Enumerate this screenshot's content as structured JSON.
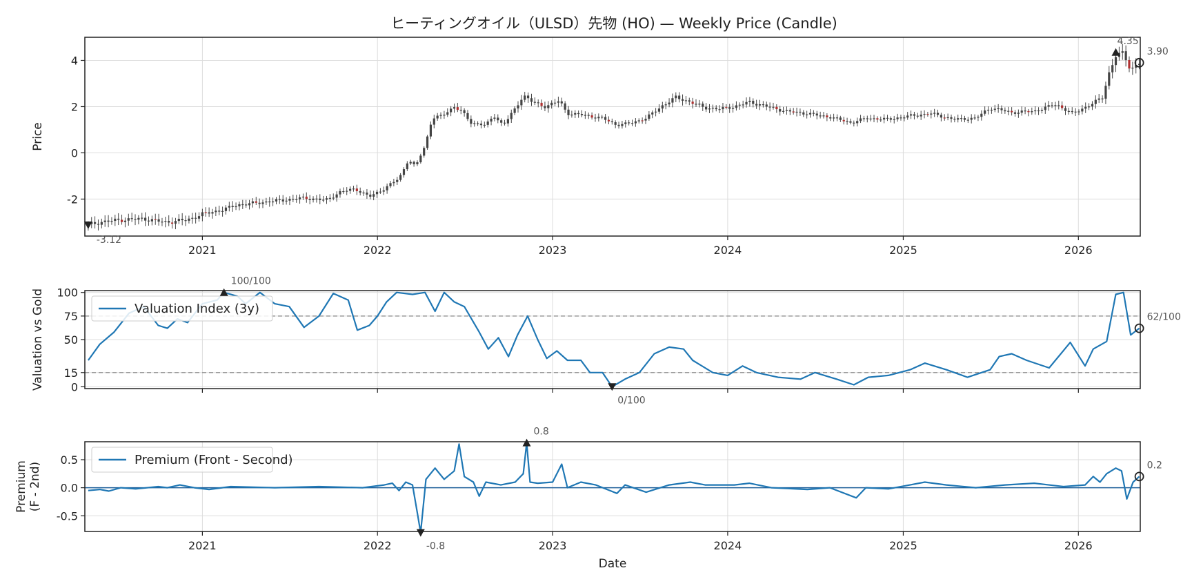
{
  "chart_data": [
    {
      "id": "price",
      "type": "candlestick",
      "title": "ヒーティングオイル（ULSD）先物 (HO) — Weekly Price (Candle)",
      "xlabel": "",
      "ylabel": "Price",
      "xlim": [
        "2020-05-01",
        "2026-05-10"
      ],
      "ylim": [
        -3.6,
        5.0
      ],
      "yticks": [
        -2,
        0,
        2,
        4
      ],
      "xticks": [
        "2021",
        "2022",
        "2023",
        "2024",
        "2025",
        "2026"
      ],
      "grid": true,
      "colors": {
        "up": "#444444",
        "down": "#b03030"
      },
      "anchors": [
        [
          "2020-05-08",
          -3.12
        ],
        [
          "2020-06-01",
          -3.0
        ],
        [
          "2020-07-15",
          -2.9
        ],
        [
          "2020-09-01",
          -2.85
        ],
        [
          "2020-10-15",
          -3.0
        ],
        [
          "2020-12-01",
          -2.9
        ],
        [
          "2021-01-01",
          -2.65
        ],
        [
          "2021-02-15",
          -2.45
        ],
        [
          "2021-03-15",
          -2.25
        ],
        [
          "2021-05-01",
          -2.15
        ],
        [
          "2021-06-15",
          -2.05
        ],
        [
          "2021-08-01",
          -1.95
        ],
        [
          "2021-09-15",
          -2.05
        ],
        [
          "2021-10-15",
          -1.7
        ],
        [
          "2021-11-15",
          -1.55
        ],
        [
          "2021-12-15",
          -1.9
        ],
        [
          "2022-01-15",
          -1.55
        ],
        [
          "2022-02-15",
          -1.1
        ],
        [
          "2022-03-07",
          -0.3
        ],
        [
          "2022-03-21",
          -0.6
        ],
        [
          "2022-04-10",
          0.3
        ],
        [
          "2022-04-25",
          1.5
        ],
        [
          "2022-05-15",
          1.6
        ],
        [
          "2022-06-10",
          2.0
        ],
        [
          "2022-06-25",
          1.8
        ],
        [
          "2022-07-15",
          1.3
        ],
        [
          "2022-08-15",
          1.2
        ],
        [
          "2022-09-01",
          1.6
        ],
        [
          "2022-09-20",
          1.2
        ],
        [
          "2022-10-15",
          1.9
        ],
        [
          "2022-11-01",
          2.5
        ],
        [
          "2022-11-20",
          2.2
        ],
        [
          "2022-12-15",
          2.0
        ],
        [
          "2023-01-15",
          2.25
        ],
        [
          "2023-02-01",
          1.7
        ],
        [
          "2023-03-01",
          1.65
        ],
        [
          "2023-04-15",
          1.5
        ],
        [
          "2023-05-15",
          1.2
        ],
        [
          "2023-06-15",
          1.3
        ],
        [
          "2023-07-15",
          1.5
        ],
        [
          "2023-08-15",
          2.0
        ],
        [
          "2023-09-15",
          2.4
        ],
        [
          "2023-10-15",
          2.2
        ],
        [
          "2023-11-15",
          1.95
        ],
        [
          "2023-12-15",
          1.9
        ],
        [
          "2024-01-15",
          2.0
        ],
        [
          "2024-02-15",
          2.2
        ],
        [
          "2024-03-15",
          2.05
        ],
        [
          "2024-05-01",
          1.8
        ],
        [
          "2024-06-15",
          1.7
        ],
        [
          "2024-08-01",
          1.55
        ],
        [
          "2024-09-15",
          1.3
        ],
        [
          "2024-10-15",
          1.5
        ],
        [
          "2024-12-01",
          1.45
        ],
        [
          "2025-01-15",
          1.6
        ],
        [
          "2025-03-01",
          1.7
        ],
        [
          "2025-04-15",
          1.45
        ],
        [
          "2025-06-01",
          1.5
        ],
        [
          "2025-07-01",
          1.95
        ],
        [
          "2025-08-15",
          1.75
        ],
        [
          "2025-10-01",
          1.8
        ],
        [
          "2025-11-15",
          2.1
        ],
        [
          "2025-12-20",
          1.7
        ],
        [
          "2026-02-01",
          2.15
        ],
        [
          "2026-02-20",
          2.4
        ],
        [
          "2026-03-05",
          3.4
        ],
        [
          "2026-03-20",
          4.2
        ],
        [
          "2026-04-05",
          4.3
        ],
        [
          "2026-04-20",
          3.6
        ],
        [
          "2026-05-08",
          3.9
        ]
      ],
      "annotations": [
        {
          "label": "4.35",
          "x": "2026-03-20",
          "y": 4.35,
          "marker": "up"
        },
        {
          "label": "3.90",
          "x": "2026-05-08",
          "y": 3.9,
          "marker": "circle"
        },
        {
          "label": "-3.12",
          "x": "2020-05-08",
          "y": -3.12,
          "marker": "down"
        }
      ]
    },
    {
      "id": "valuation",
      "type": "line",
      "xlabel": "",
      "ylabel": "Valuation vs Gold",
      "xlim": [
        "2020-05-01",
        "2026-05-10"
      ],
      "ylim": [
        -2,
        102
      ],
      "yticks": [
        0,
        15,
        50,
        75,
        100
      ],
      "hlines": [
        15,
        75
      ],
      "grid": true,
      "legend": "upper-left",
      "series": [
        {
          "name": "Valuation Index (3y)",
          "color": "#1f77b4",
          "points": [
            [
              "2020-05-08",
              28
            ],
            [
              "2020-06-01",
              45
            ],
            [
              "2020-07-01",
              58
            ],
            [
              "2020-08-01",
              78
            ],
            [
              "2020-09-01",
              85
            ],
            [
              "2020-10-01",
              65
            ],
            [
              "2020-10-20",
              62
            ],
            [
              "2020-11-10",
              72
            ],
            [
              "2020-12-01",
              68
            ],
            [
              "2021-01-01",
              88
            ],
            [
              "2021-02-01",
              92
            ],
            [
              "2021-02-15",
              100
            ],
            [
              "2021-03-15",
              96
            ],
            [
              "2021-04-01",
              88
            ],
            [
              "2021-05-01",
              100
            ],
            [
              "2021-06-01",
              88
            ],
            [
              "2021-07-01",
              85
            ],
            [
              "2021-08-01",
              63
            ],
            [
              "2021-09-01",
              75
            ],
            [
              "2021-10-01",
              99
            ],
            [
              "2021-11-01",
              92
            ],
            [
              "2021-11-20",
              60
            ],
            [
              "2021-12-15",
              65
            ],
            [
              "2022-01-01",
              75
            ],
            [
              "2022-01-20",
              90
            ],
            [
              "2022-02-10",
              100
            ],
            [
              "2022-03-15",
              98
            ],
            [
              "2022-04-10",
              100
            ],
            [
              "2022-05-01",
              80
            ],
            [
              "2022-05-20",
              100
            ],
            [
              "2022-06-10",
              90
            ],
            [
              "2022-07-01",
              85
            ],
            [
              "2022-08-01",
              58
            ],
            [
              "2022-08-20",
              40
            ],
            [
              "2022-09-10",
              52
            ],
            [
              "2022-10-01",
              32
            ],
            [
              "2022-10-20",
              55
            ],
            [
              "2022-11-10",
              75
            ],
            [
              "2022-12-01",
              50
            ],
            [
              "2022-12-20",
              30
            ],
            [
              "2023-01-10",
              38
            ],
            [
              "2023-02-01",
              28
            ],
            [
              "2023-03-01",
              28
            ],
            [
              "2023-03-20",
              15
            ],
            [
              "2023-04-15",
              15
            ],
            [
              "2023-05-05",
              0
            ],
            [
              "2023-06-01",
              8
            ],
            [
              "2023-07-01",
              15
            ],
            [
              "2023-08-01",
              35
            ],
            [
              "2023-09-01",
              42
            ],
            [
              "2023-10-01",
              40
            ],
            [
              "2023-10-20",
              28
            ],
            [
              "2023-12-01",
              15
            ],
            [
              "2024-01-01",
              12
            ],
            [
              "2024-02-01",
              22
            ],
            [
              "2024-03-01",
              15
            ],
            [
              "2024-04-15",
              10
            ],
            [
              "2024-06-01",
              8
            ],
            [
              "2024-07-01",
              15
            ],
            [
              "2024-08-15",
              8
            ],
            [
              "2024-09-20",
              2
            ],
            [
              "2024-10-20",
              10
            ],
            [
              "2024-12-01",
              12
            ],
            [
              "2025-01-15",
              18
            ],
            [
              "2025-02-15",
              25
            ],
            [
              "2025-04-01",
              18
            ],
            [
              "2025-05-15",
              10
            ],
            [
              "2025-07-01",
              18
            ],
            [
              "2025-07-20",
              32
            ],
            [
              "2025-08-15",
              35
            ],
            [
              "2025-09-15",
              28
            ],
            [
              "2025-11-01",
              20
            ],
            [
              "2025-12-15",
              47
            ],
            [
              "2026-01-15",
              22
            ],
            [
              "2026-02-01",
              40
            ],
            [
              "2026-03-01",
              48
            ],
            [
              "2026-03-20",
              98
            ],
            [
              "2026-04-05",
              100
            ],
            [
              "2026-04-20",
              55
            ],
            [
              "2026-05-08",
              62
            ]
          ]
        }
      ],
      "annotations": [
        {
          "label": "100/100",
          "x": "2021-02-15",
          "y": 100,
          "marker": "up"
        },
        {
          "label": "0/100",
          "x": "2023-05-05",
          "y": 0,
          "marker": "down"
        },
        {
          "label": "62/100",
          "x": "2026-05-08",
          "y": 62,
          "marker": "circle"
        }
      ]
    },
    {
      "id": "premium",
      "type": "line",
      "xlabel": "Date",
      "ylabel": "Premium\n(F - 2nd)",
      "xlim": [
        "2020-05-01",
        "2026-05-10"
      ],
      "ylim": [
        -0.78,
        0.82
      ],
      "yticks": [
        -0.5,
        0.0,
        0.5
      ],
      "xticks": [
        "2021",
        "2022",
        "2023",
        "2024",
        "2025",
        "2026"
      ],
      "hlines": [
        0
      ],
      "grid": true,
      "legend": "upper-left",
      "series": [
        {
          "name": "Premium (Front - Second)",
          "color": "#1f77b4",
          "points": [
            [
              "2020-05-08",
              -0.05
            ],
            [
              "2020-06-01",
              -0.03
            ],
            [
              "2020-06-20",
              -0.06
            ],
            [
              "2020-07-15",
              0.0
            ],
            [
              "2020-08-15",
              -0.02
            ],
            [
              "2020-10-01",
              0.02
            ],
            [
              "2020-10-20",
              0.0
            ],
            [
              "2020-11-15",
              0.05
            ],
            [
              "2020-12-15",
              0.0
            ],
            [
              "2021-01-15",
              -0.03
            ],
            [
              "2021-03-01",
              0.02
            ],
            [
              "2021-06-01",
              0.0
            ],
            [
              "2021-09-01",
              0.02
            ],
            [
              "2021-12-01",
              0.0
            ],
            [
              "2022-01-15",
              0.05
            ],
            [
              "2022-02-01",
              0.08
            ],
            [
              "2022-02-15",
              -0.05
            ],
            [
              "2022-03-01",
              0.1
            ],
            [
              "2022-03-15",
              0.05
            ],
            [
              "2022-03-25",
              -0.45
            ],
            [
              "2022-04-01",
              -0.8
            ],
            [
              "2022-04-12",
              0.15
            ],
            [
              "2022-05-01",
              0.35
            ],
            [
              "2022-05-20",
              0.15
            ],
            [
              "2022-06-10",
              0.3
            ],
            [
              "2022-06-20",
              0.78
            ],
            [
              "2022-07-01",
              0.2
            ],
            [
              "2022-07-20",
              0.1
            ],
            [
              "2022-08-01",
              -0.15
            ],
            [
              "2022-08-15",
              0.1
            ],
            [
              "2022-09-15",
              0.05
            ],
            [
              "2022-10-15",
              0.1
            ],
            [
              "2022-11-01",
              0.25
            ],
            [
              "2022-11-08",
              0.8
            ],
            [
              "2022-11-15",
              0.1
            ],
            [
              "2022-12-01",
              0.08
            ],
            [
              "2023-01-01",
              0.1
            ],
            [
              "2023-01-20",
              0.42
            ],
            [
              "2023-02-01",
              0.0
            ],
            [
              "2023-03-01",
              0.1
            ],
            [
              "2023-04-01",
              0.05
            ],
            [
              "2023-05-15",
              -0.1
            ],
            [
              "2023-06-01",
              0.05
            ],
            [
              "2023-07-15",
              -0.08
            ],
            [
              "2023-09-01",
              0.05
            ],
            [
              "2023-10-15",
              0.1
            ],
            [
              "2023-11-15",
              0.05
            ],
            [
              "2024-01-15",
              0.05
            ],
            [
              "2024-02-15",
              0.08
            ],
            [
              "2024-04-01",
              0.0
            ],
            [
              "2024-06-15",
              -0.03
            ],
            [
              "2024-08-01",
              0.0
            ],
            [
              "2024-09-25",
              -0.18
            ],
            [
              "2024-10-15",
              0.0
            ],
            [
              "2024-12-01",
              -0.02
            ],
            [
              "2025-01-15",
              0.05
            ],
            [
              "2025-02-15",
              0.1
            ],
            [
              "2025-04-01",
              0.05
            ],
            [
              "2025-06-01",
              0.0
            ],
            [
              "2025-08-01",
              0.05
            ],
            [
              "2025-10-01",
              0.08
            ],
            [
              "2025-12-01",
              0.02
            ],
            [
              "2026-01-15",
              0.05
            ],
            [
              "2026-02-01",
              0.2
            ],
            [
              "2026-02-15",
              0.1
            ],
            [
              "2026-03-01",
              0.25
            ],
            [
              "2026-03-20",
              0.35
            ],
            [
              "2026-04-01",
              0.3
            ],
            [
              "2026-04-12",
              -0.2
            ],
            [
              "2026-04-25",
              0.1
            ],
            [
              "2026-05-08",
              0.2
            ]
          ]
        }
      ],
      "annotations": [
        {
          "label": "0.8",
          "x": "2022-11-08",
          "y": 0.8,
          "marker": "up"
        },
        {
          "label": "-0.8",
          "x": "2022-04-01",
          "y": -0.8,
          "marker": "down"
        },
        {
          "label": "0.2",
          "x": "2026-05-08",
          "y": 0.2,
          "marker": "circle"
        }
      ]
    }
  ]
}
